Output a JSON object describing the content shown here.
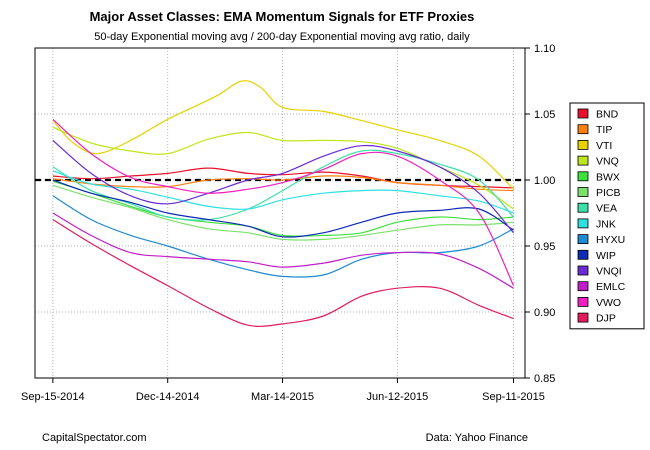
{
  "chart_data": {
    "type": "line",
    "title": "Major Asset Classes: EMA Momentum Signals for ETF Proxies",
    "subtitle": "50-day Exponential moving avg / 200-day Exponential moving avg ratio, daily",
    "x_ticks": [
      "Sep-15-2014",
      "Dec-14-2014",
      "Mar-14-2015",
      "Jun-12-2015",
      "Sep-11-2015"
    ],
    "x_range": [
      "2014-09-01",
      "2015-09-20"
    ],
    "ylim": [
      0.85,
      1.1
    ],
    "y_ticks": [
      "0.85",
      "0.90",
      "0.95",
      "1.00",
      "1.05",
      "1.10"
    ],
    "reference_line": 1.0,
    "grid": true,
    "legend_position": "right",
    "series": [
      {
        "name": "BND",
        "color": "#e8102a",
        "points": [
          [
            "2014-09-15",
            1.003
          ],
          [
            "2014-10-15",
            1.001
          ],
          [
            "2014-11-15",
            1.003
          ],
          [
            "2014-12-14",
            1.005
          ],
          [
            "2015-01-15",
            1.009
          ],
          [
            "2015-02-15",
            1.005
          ],
          [
            "2015-03-14",
            1.004
          ],
          [
            "2015-04-15",
            1.006
          ],
          [
            "2015-05-15",
            1.003
          ],
          [
            "2015-06-12",
            0.998
          ],
          [
            "2015-07-15",
            0.996
          ],
          [
            "2015-08-15",
            0.995
          ],
          [
            "2015-09-11",
            0.994
          ]
        ]
      },
      {
        "name": "TIP",
        "color": "#ff7f0e",
        "points": [
          [
            "2014-09-15",
            1.001
          ],
          [
            "2014-10-15",
            0.997
          ],
          [
            "2014-11-15",
            0.995
          ],
          [
            "2014-12-14",
            0.995
          ],
          [
            "2015-01-15",
            1.0
          ],
          [
            "2015-02-15",
            1.001
          ],
          [
            "2015-03-14",
            1.0
          ],
          [
            "2015-04-15",
            1.003
          ],
          [
            "2015-05-15",
            1.002
          ],
          [
            "2015-06-12",
            0.998
          ],
          [
            "2015-07-15",
            0.996
          ],
          [
            "2015-08-15",
            0.993
          ],
          [
            "2015-09-11",
            0.992
          ]
        ]
      },
      {
        "name": "VTI",
        "color": "#e6d200",
        "points": [
          [
            "2014-09-15",
            1.045
          ],
          [
            "2014-10-01",
            1.028
          ],
          [
            "2014-10-20",
            1.02
          ],
          [
            "2014-11-15",
            1.03
          ],
          [
            "2014-12-14",
            1.046
          ],
          [
            "2015-01-20",
            1.063
          ],
          [
            "2015-02-10",
            1.075
          ],
          [
            "2015-02-25",
            1.07
          ],
          [
            "2015-03-14",
            1.055
          ],
          [
            "2015-04-15",
            1.052
          ],
          [
            "2015-05-15",
            1.045
          ],
          [
            "2015-06-12",
            1.038
          ],
          [
            "2015-07-15",
            1.03
          ],
          [
            "2015-08-15",
            1.018
          ],
          [
            "2015-09-11",
            0.993
          ]
        ]
      },
      {
        "name": "VNQ",
        "color": "#bfe61a",
        "points": [
          [
            "2014-09-15",
            1.04
          ],
          [
            "2014-10-15",
            1.028
          ],
          [
            "2014-11-15",
            1.022
          ],
          [
            "2014-12-14",
            1.02
          ],
          [
            "2015-01-15",
            1.031
          ],
          [
            "2015-02-15",
            1.036
          ],
          [
            "2015-03-14",
            1.03
          ],
          [
            "2015-04-15",
            1.03
          ],
          [
            "2015-05-15",
            1.029
          ],
          [
            "2015-06-12",
            1.024
          ],
          [
            "2015-07-15",
            1.01
          ],
          [
            "2015-08-15",
            0.996
          ],
          [
            "2015-09-11",
            0.978
          ]
        ]
      },
      {
        "name": "BWX",
        "color": "#3ee03e",
        "points": [
          [
            "2014-09-15",
            0.999
          ],
          [
            "2014-10-15",
            0.99
          ],
          [
            "2014-11-15",
            0.98
          ],
          [
            "2014-12-14",
            0.972
          ],
          [
            "2015-01-15",
            0.968
          ],
          [
            "2015-02-15",
            0.965
          ],
          [
            "2015-03-14",
            0.958
          ],
          [
            "2015-04-15",
            0.958
          ],
          [
            "2015-05-15",
            0.96
          ],
          [
            "2015-06-12",
            0.968
          ],
          [
            "2015-07-15",
            0.972
          ],
          [
            "2015-08-15",
            0.97
          ],
          [
            "2015-09-11",
            0.972
          ]
        ]
      },
      {
        "name": "PICB",
        "color": "#7ee06c",
        "points": [
          [
            "2014-09-15",
            0.996
          ],
          [
            "2014-10-15",
            0.987
          ],
          [
            "2014-11-15",
            0.979
          ],
          [
            "2014-12-14",
            0.97
          ],
          [
            "2015-01-15",
            0.963
          ],
          [
            "2015-02-15",
            0.96
          ],
          [
            "2015-03-14",
            0.955
          ],
          [
            "2015-04-15",
            0.955
          ],
          [
            "2015-05-15",
            0.958
          ],
          [
            "2015-06-12",
            0.962
          ],
          [
            "2015-07-15",
            0.966
          ],
          [
            "2015-08-15",
            0.966
          ],
          [
            "2015-09-11",
            0.968
          ]
        ]
      },
      {
        "name": "VEA",
        "color": "#3de0a8",
        "points": [
          [
            "2014-09-15",
            1.01
          ],
          [
            "2014-10-15",
            0.992
          ],
          [
            "2014-11-15",
            0.982
          ],
          [
            "2014-12-14",
            0.972
          ],
          [
            "2015-01-15",
            0.97
          ],
          [
            "2015-02-15",
            0.978
          ],
          [
            "2015-03-14",
            0.992
          ],
          [
            "2015-04-15",
            1.01
          ],
          [
            "2015-05-15",
            1.022
          ],
          [
            "2015-06-12",
            1.02
          ],
          [
            "2015-07-15",
            1.012
          ],
          [
            "2015-08-15",
            1.0
          ],
          [
            "2015-09-11",
            0.972
          ]
        ]
      },
      {
        "name": "JNK",
        "color": "#2ee0e0",
        "points": [
          [
            "2014-09-15",
            1.007
          ],
          [
            "2014-10-15",
            0.997
          ],
          [
            "2014-11-15",
            0.993
          ],
          [
            "2014-12-14",
            0.987
          ],
          [
            "2015-01-15",
            0.98
          ],
          [
            "2015-02-15",
            0.978
          ],
          [
            "2015-03-14",
            0.985
          ],
          [
            "2015-04-15",
            0.99
          ],
          [
            "2015-05-15",
            0.992
          ],
          [
            "2015-06-12",
            0.992
          ],
          [
            "2015-07-15",
            0.988
          ],
          [
            "2015-08-15",
            0.984
          ],
          [
            "2015-09-11",
            0.975
          ]
        ]
      },
      {
        "name": "HYXU",
        "color": "#1f8ad0",
        "points": [
          [
            "2014-09-15",
            0.988
          ],
          [
            "2014-10-15",
            0.97
          ],
          [
            "2014-11-15",
            0.958
          ],
          [
            "2014-12-14",
            0.95
          ],
          [
            "2015-01-15",
            0.94
          ],
          [
            "2015-02-15",
            0.932
          ],
          [
            "2015-03-14",
            0.927
          ],
          [
            "2015-04-15",
            0.928
          ],
          [
            "2015-05-15",
            0.94
          ],
          [
            "2015-06-12",
            0.945
          ],
          [
            "2015-07-15",
            0.945
          ],
          [
            "2015-08-15",
            0.95
          ],
          [
            "2015-09-11",
            0.963
          ]
        ]
      },
      {
        "name": "WIP",
        "color": "#0d2bb4",
        "points": [
          [
            "2014-09-15",
            1.0
          ],
          [
            "2014-10-15",
            0.99
          ],
          [
            "2014-11-15",
            0.983
          ],
          [
            "2014-12-14",
            0.975
          ],
          [
            "2015-01-15",
            0.97
          ],
          [
            "2015-02-15",
            0.965
          ],
          [
            "2015-03-14",
            0.957
          ],
          [
            "2015-04-15",
            0.96
          ],
          [
            "2015-05-15",
            0.968
          ],
          [
            "2015-06-12",
            0.975
          ],
          [
            "2015-07-15",
            0.977
          ],
          [
            "2015-08-15",
            0.978
          ],
          [
            "2015-09-11",
            0.962
          ]
        ]
      },
      {
        "name": "VNQI",
        "color": "#6a2bd6",
        "points": [
          [
            "2014-09-15",
            1.03
          ],
          [
            "2014-10-15",
            1.005
          ],
          [
            "2014-11-15",
            0.988
          ],
          [
            "2014-12-14",
            0.982
          ],
          [
            "2015-01-15",
            0.99
          ],
          [
            "2015-02-15",
            1.0
          ],
          [
            "2015-03-14",
            1.005
          ],
          [
            "2015-04-15",
            1.018
          ],
          [
            "2015-05-15",
            1.026
          ],
          [
            "2015-06-12",
            1.022
          ],
          [
            "2015-07-15",
            1.01
          ],
          [
            "2015-08-15",
            0.99
          ],
          [
            "2015-09-11",
            0.96
          ]
        ]
      },
      {
        "name": "EMLC",
        "color": "#c01ec8",
        "points": [
          [
            "2014-09-15",
            0.975
          ],
          [
            "2014-10-15",
            0.958
          ],
          [
            "2014-11-15",
            0.945
          ],
          [
            "2014-12-14",
            0.942
          ],
          [
            "2015-01-15",
            0.94
          ],
          [
            "2015-02-15",
            0.938
          ],
          [
            "2015-03-14",
            0.934
          ],
          [
            "2015-04-15",
            0.937
          ],
          [
            "2015-05-15",
            0.943
          ],
          [
            "2015-06-12",
            0.945
          ],
          [
            "2015-07-15",
            0.944
          ],
          [
            "2015-08-15",
            0.933
          ],
          [
            "2015-09-11",
            0.918
          ]
        ]
      },
      {
        "name": "VWO",
        "color": "#f020c0",
        "points": [
          [
            "2014-09-15",
            1.046
          ],
          [
            "2014-10-15",
            1.02
          ],
          [
            "2014-11-15",
            1.002
          ],
          [
            "2014-12-14",
            0.995
          ],
          [
            "2015-01-15",
            0.99
          ],
          [
            "2015-02-15",
            0.993
          ],
          [
            "2015-03-14",
            0.998
          ],
          [
            "2015-04-15",
            1.008
          ],
          [
            "2015-05-15",
            1.02
          ],
          [
            "2015-06-12",
            1.018
          ],
          [
            "2015-07-15",
            1.0
          ],
          [
            "2015-08-15",
            0.975
          ],
          [
            "2015-09-11",
            0.92
          ]
        ]
      },
      {
        "name": "DJP",
        "color": "#e01c5c",
        "points": [
          [
            "2014-09-15",
            0.97
          ],
          [
            "2014-10-15",
            0.952
          ],
          [
            "2014-11-15",
            0.935
          ],
          [
            "2014-12-14",
            0.92
          ],
          [
            "2015-01-15",
            0.903
          ],
          [
            "2015-02-15",
            0.89
          ],
          [
            "2015-03-14",
            0.891
          ],
          [
            "2015-04-15",
            0.897
          ],
          [
            "2015-05-15",
            0.912
          ],
          [
            "2015-06-12",
            0.918
          ],
          [
            "2015-07-15",
            0.918
          ],
          [
            "2015-08-15",
            0.905
          ],
          [
            "2015-09-11",
            0.895
          ]
        ]
      }
    ]
  },
  "footer": {
    "source_left": "CapitalSpectator.com",
    "source_right": "Data: Yahoo Finance"
  }
}
